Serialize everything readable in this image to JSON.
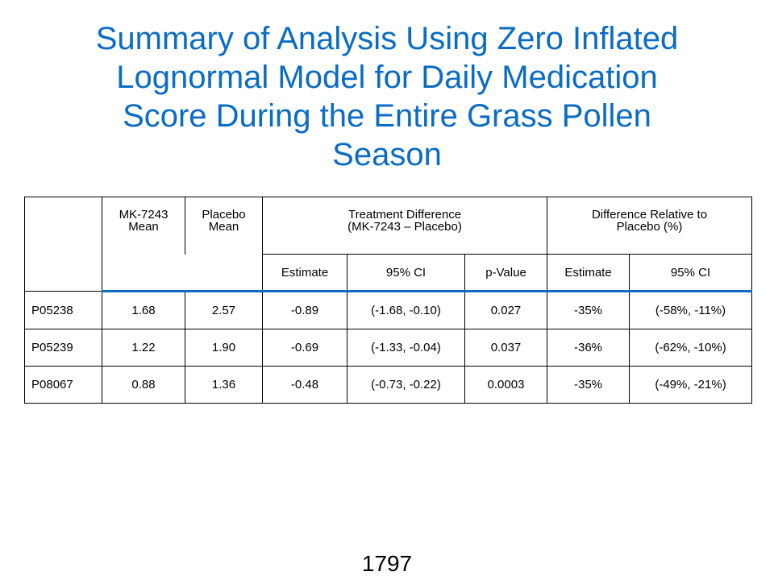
{
  "title_lines": [
    "Summary of Analysis Using Zero Inflated",
    "Lognormal Model for Daily Medication",
    "Score During the Entire Grass Pollen",
    "Season"
  ],
  "table": {
    "header_row1": {
      "mk_mean": [
        "MK-7243",
        "Mean"
      ],
      "placebo_mean": [
        "Placebo",
        "Mean"
      ],
      "treatment_difference": [
        "Treatment Difference",
        "(MK-7243 – Placebo)"
      ],
      "relative_difference": [
        "Difference Relative to",
        "Placebo (%)"
      ]
    },
    "header_row2": [
      "Estimate",
      "95% CI",
      "p-Value",
      "Estimate",
      "95% CI"
    ],
    "rows": [
      [
        "P05238",
        "1.68",
        "2.57",
        "-0.89",
        "(-1.68, -0.10)",
        "0.027",
        "-35%",
        "(-58%, -11%)"
      ],
      [
        "P05239",
        "1.22",
        "1.90",
        "-0.69",
        "(-1.33, -0.04)",
        "0.037",
        "-36%",
        "(-62%, -10%)"
      ],
      [
        "P08067",
        "0.88",
        "1.36",
        "-0.48",
        "(-0.73, -0.22)",
        "0.0003",
        "-35%",
        "(-49%, -21%)"
      ]
    ]
  },
  "page_number": "1797",
  "colors": {
    "title": "#0a6cc4",
    "header_rule": "#0a6cc4"
  }
}
